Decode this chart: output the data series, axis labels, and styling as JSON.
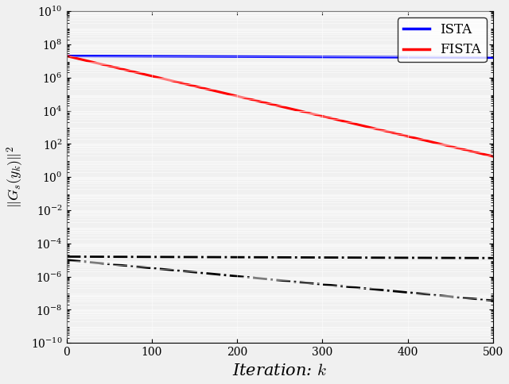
{
  "title": "",
  "xlabel": "Iteration: $k$",
  "ylabel": "$\\|G_s(y_k)\\|^2$",
  "xlim": [
    0,
    500
  ],
  "ylim_log": [
    -10,
    10
  ],
  "n_iter": 500,
  "ista_color": "#0000ff",
  "fista_color": "#ff0000",
  "dash_color": "#000000",
  "line_width": 2.2,
  "dash_linewidth": 2.0,
  "legend_labels": [
    "ISTA",
    "FISTA"
  ],
  "C_init": 20000000.0,
  "ista_rate": 0.99955,
  "fista_rate": 0.9725,
  "upper_dash_C": 1.6e-05,
  "upper_dash_rate": 0.9996,
  "lower_dash_C": 1e-05,
  "lower_dash_rate": 0.9888,
  "figsize": [
    6.4,
    4.84
  ],
  "dpi": 100,
  "bg_color": "#f0f0f0",
  "font_family": "DejaVu Sans"
}
